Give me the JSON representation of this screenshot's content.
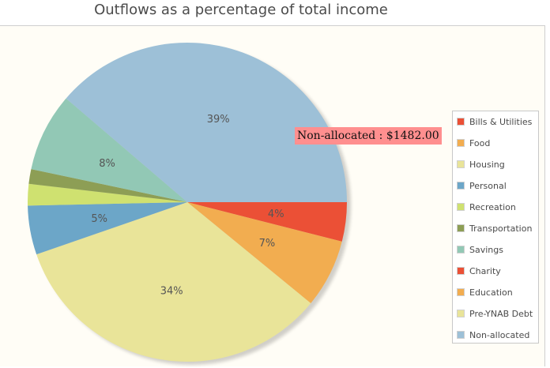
{
  "chart_data": {
    "type": "pie",
    "title": "Outflows as a percentage of total income",
    "slices": [
      {
        "name": "Bills & Utilities",
        "percent": 4.0,
        "label": "4%",
        "color": "#eb5036"
      },
      {
        "name": "Food",
        "percent": 7.0,
        "label": "7%",
        "color": "#f2ad50"
      },
      {
        "name": "Housing",
        "percent": 34.0,
        "label": "34%",
        "color": "#e9e499"
      },
      {
        "name": "Personal",
        "percent": 5.0,
        "label": "5%",
        "color": "#6ca6c8"
      },
      {
        "name": "Recreation",
        "percent": 2.2,
        "label": "",
        "color": "#cfe170"
      },
      {
        "name": "Transportation",
        "percent": 1.5,
        "label": "",
        "color": "#8d9e55"
      },
      {
        "name": "Savings",
        "percent": 8.0,
        "label": "8%",
        "color": "#92c8b5"
      },
      {
        "name": "Charity",
        "percent": 0,
        "label": "",
        "color": "#eb5036"
      },
      {
        "name": "Education",
        "percent": 0,
        "label": "",
        "color": "#f2ad50"
      },
      {
        "name": "Pre-YNAB Debt",
        "percent": 0,
        "label": "",
        "color": "#e9e499"
      },
      {
        "name": "Non-allocated",
        "percent": 39.0,
        "label": "39%",
        "color": "#9dc0d7"
      }
    ],
    "legend_position": "right",
    "tooltip": "Non-allocated : $1482.00"
  }
}
